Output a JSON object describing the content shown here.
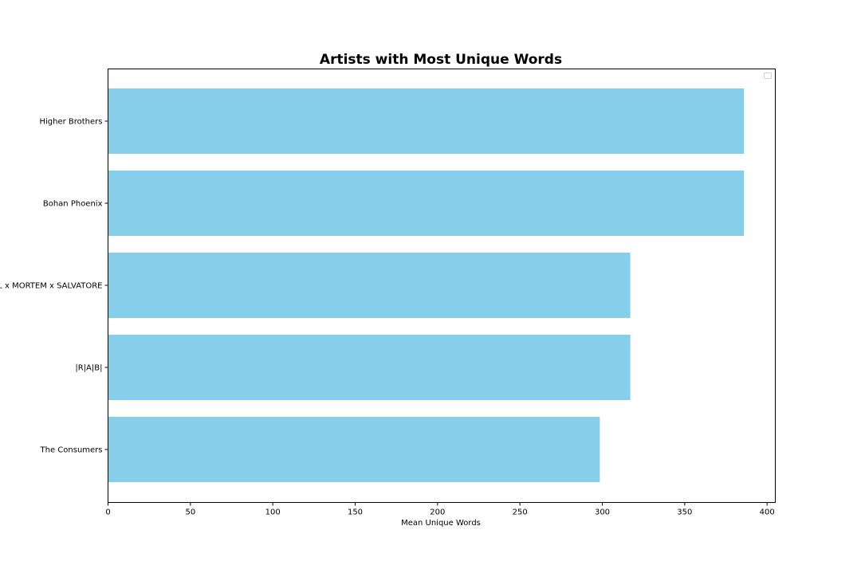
{
  "chart_data": {
    "type": "bar",
    "orientation": "horizontal",
    "title": "Artists with Most Unique Words",
    "xlabel": "Mean Unique Words",
    "ylabel": "",
    "categories": [
      "Higher Brothers",
      "Bohan Phoenix",
      "KRESTALL x MORTEM x SALVATORE",
      "|R|A|B|",
      "The Consumers"
    ],
    "values": [
      386,
      386,
      317,
      317,
      298.5
    ],
    "xlim": [
      0,
      405
    ],
    "xticks": [
      0,
      50,
      100,
      150,
      200,
      250,
      300,
      350,
      400
    ],
    "bar_color": "#87CEEB",
    "grid": false,
    "legend": "top-right",
    "legend_entries": []
  }
}
